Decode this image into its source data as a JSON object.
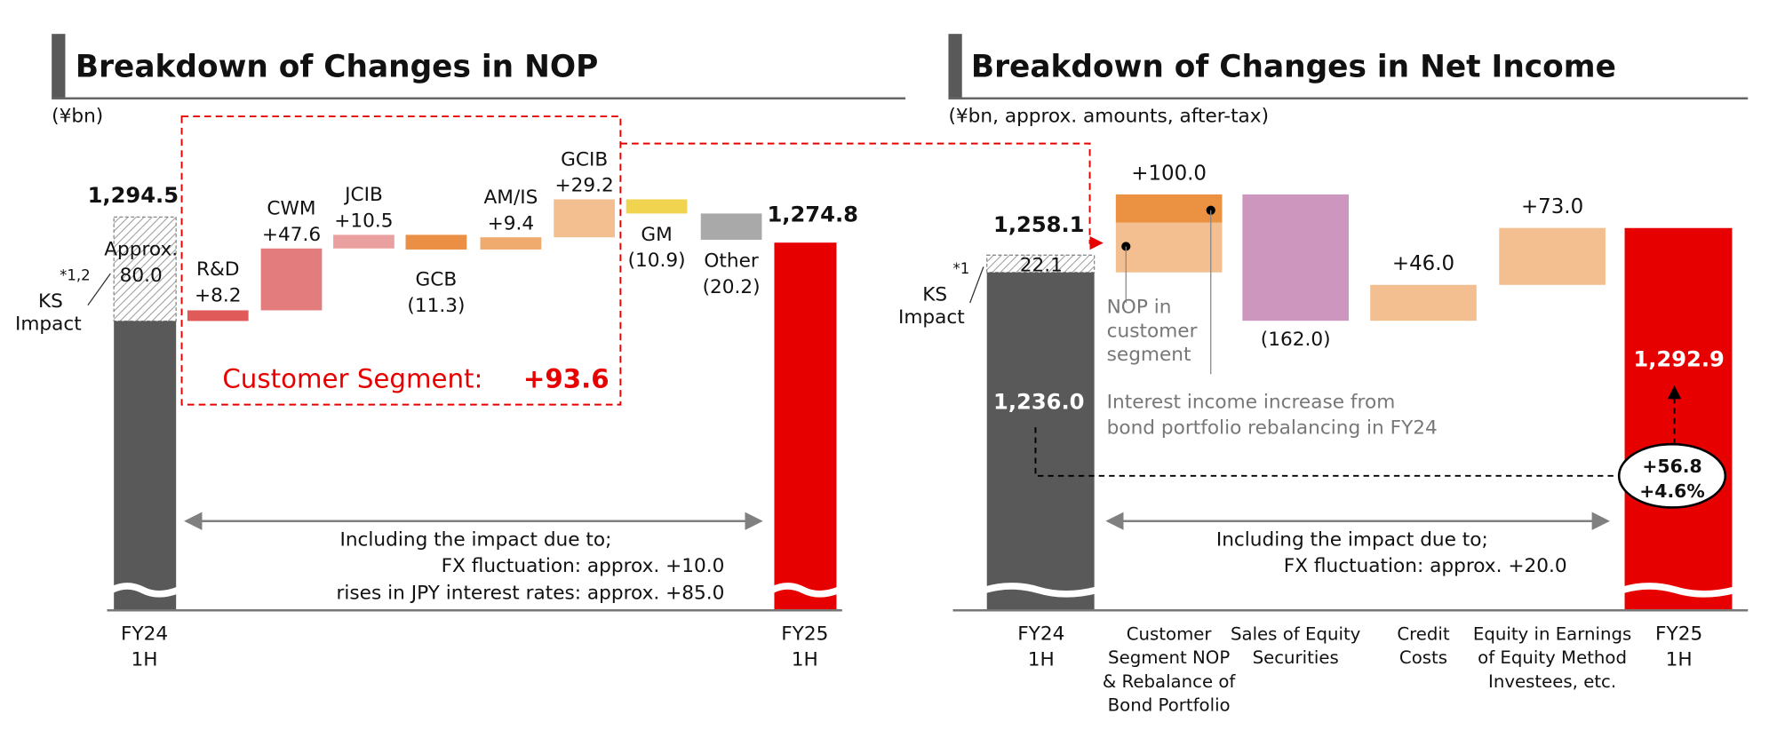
{
  "chart_data": [
    {
      "type": "waterfall",
      "title": "Breakdown of Changes in NOP",
      "unit": "(¥bn)",
      "start": {
        "label_lines": [
          "FY24",
          "1H"
        ],
        "value": 1294.5,
        "display": "1,294.5",
        "ks_impact": 80.0,
        "ks_lines": [
          "Approx.",
          "80.0"
        ],
        "ks_label_lines": [
          "KS",
          "Impact"
        ],
        "ks_note": "*1,2"
      },
      "steps": [
        {
          "label": "R&D",
          "value": 8.2,
          "display": "+8.2",
          "color": "#e05a5a"
        },
        {
          "label": "CWM",
          "value": 47.6,
          "display": "+47.6",
          "color": "#e37c7c"
        },
        {
          "label": "JCIB",
          "value": 10.5,
          "display": "+10.5",
          "color": "#eba0a0"
        },
        {
          "label": "GCB",
          "value": -11.3,
          "display": "(11.3)",
          "color": "#ea8f43"
        },
        {
          "label": "AM/IS",
          "value": 9.4,
          "display": "+9.4",
          "color": "#efaa6e"
        },
        {
          "label": "GCIB",
          "value": 29.2,
          "display": "+29.2",
          "color": "#f4bf90"
        },
        {
          "label": "GM",
          "value": -10.9,
          "display": "(10.9)",
          "color": "#f0d44f"
        },
        {
          "label": "Other",
          "value": -20.2,
          "display": "(20.2)",
          "color": "#a9a9a9"
        }
      ],
      "end": {
        "label_lines": [
          "FY25",
          "1H"
        ],
        "value": 1274.8,
        "display": "1,274.8"
      },
      "highlight": {
        "label": "Customer Segment:",
        "value": "+93.6",
        "color": "#e60000"
      },
      "note_lines": [
        "Including the impact due to;",
        "FX fluctuation: approx. +10.0",
        "rises in JPY interest rates: approx. +85.0"
      ],
      "colors": {
        "start": "#595959",
        "end": "#e60000"
      }
    },
    {
      "type": "waterfall",
      "title": "Breakdown of Changes in Net Income",
      "unit": "(¥bn, approx. amounts, after-tax)",
      "start": {
        "label_lines": [
          "FY24",
          "1H"
        ],
        "value": 1258.1,
        "display": "1,258.1",
        "ks_impact": 22.1,
        "ks_display": "22.1",
        "base_display": "1,236.0",
        "base_value": 1236.0,
        "ks_label_lines": [
          "KS",
          "Impact"
        ],
        "ks_note": "*1"
      },
      "steps": [
        {
          "label_lines": [
            "Customer",
            "Segment NOP",
            "& Rebalance of",
            "Bond Portfolio"
          ],
          "value": 100.0,
          "display": "+100.0",
          "parts": [
            {
              "label_lines": [
                "NOP in",
                "customer",
                "segment"
              ],
              "value": 64,
              "color": "#f4bf90"
            },
            {
              "label_lines": [
                "Interest income increase from",
                "bond portfolio rebalancing in FY24"
              ],
              "value": 36,
              "color": "#ea9142"
            }
          ]
        },
        {
          "label_lines": [
            "Sales of Equity",
            "Securities"
          ],
          "value": -162.0,
          "display": "(162.0)",
          "color": "#cc96be"
        },
        {
          "label_lines": [
            "Credit",
            "Costs"
          ],
          "value": 46.0,
          "display": "+46.0",
          "color": "#f4bf90"
        },
        {
          "label_lines": [
            "Equity in Earnings",
            "of Equity Method",
            "Investees, etc."
          ],
          "value": 73.0,
          "display": "+73.0",
          "color": "#f4bf90"
        }
      ],
      "end": {
        "label_lines": [
          "FY25",
          "1H"
        ],
        "value": 1292.9,
        "display": "1,292.9"
      },
      "change": {
        "amount": "+56.8",
        "percent": "+4.6%"
      },
      "note_lines": [
        "Including the impact due to;",
        "FX fluctuation: approx. +20.0"
      ],
      "colors": {
        "start": "#595959",
        "end": "#e60000"
      }
    }
  ]
}
